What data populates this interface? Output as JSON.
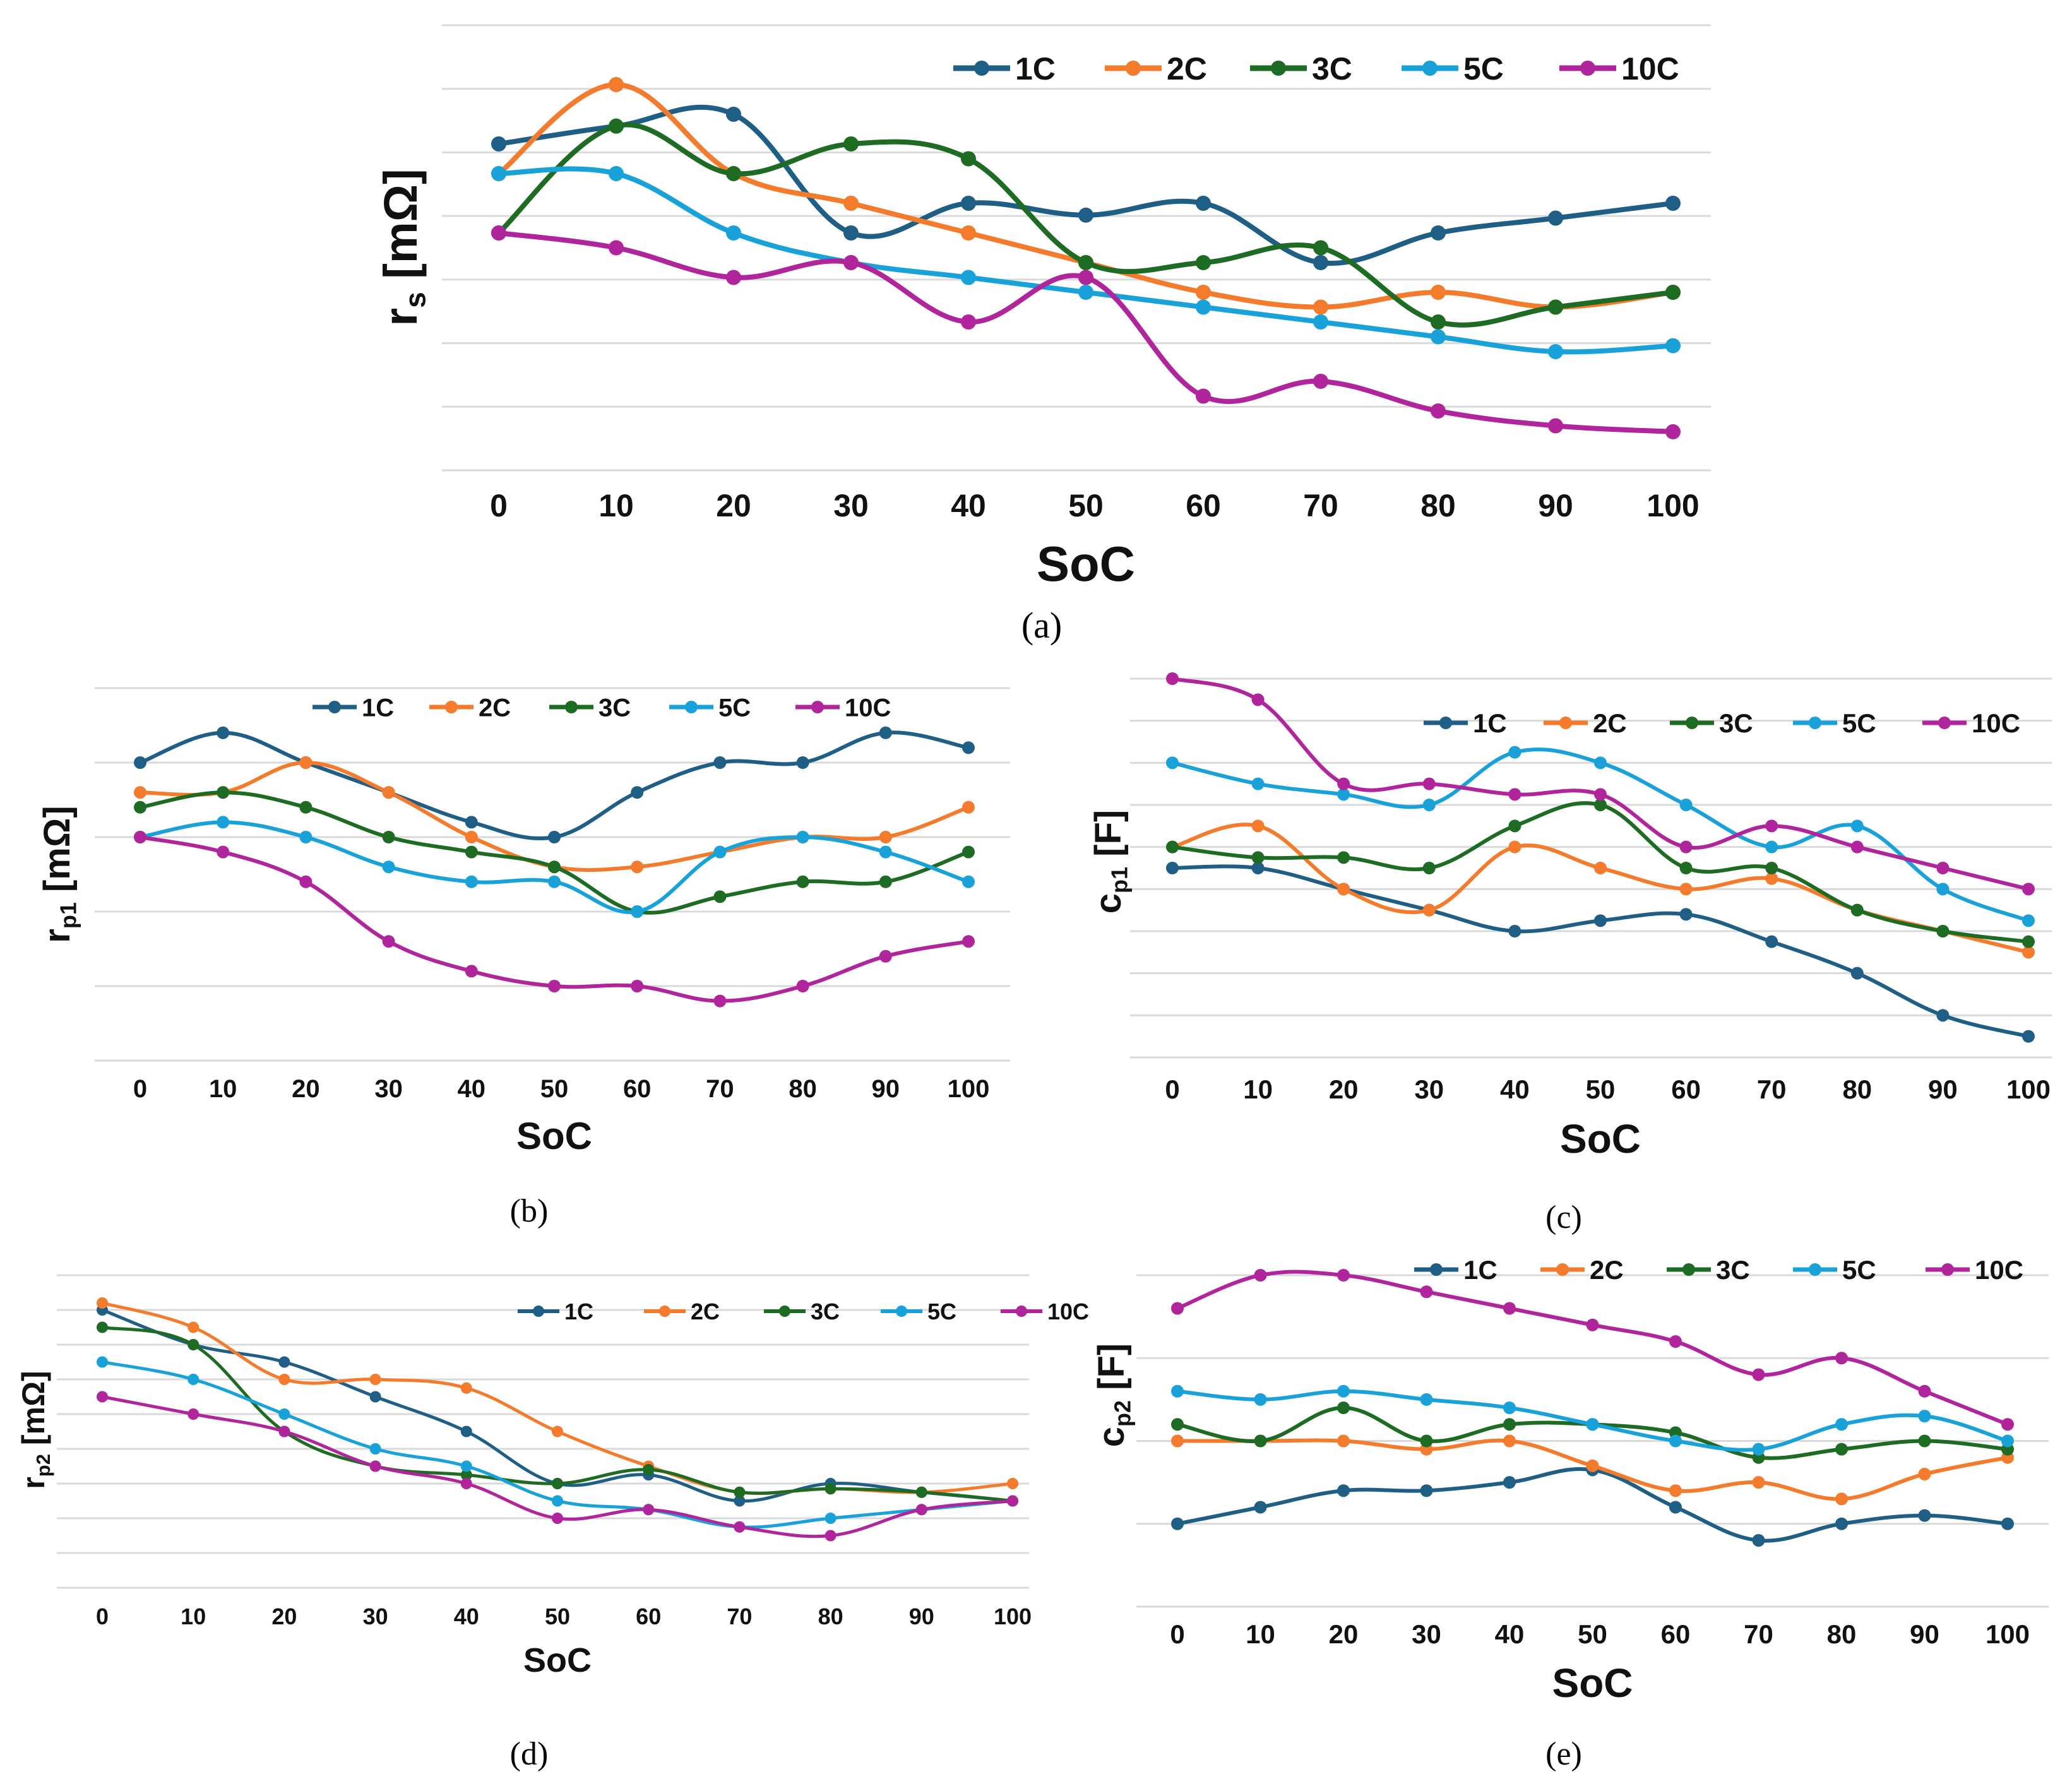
{
  "figure": {
    "captions": [
      "(a)",
      "(b)",
      "(c)",
      "(d)",
      "(e)"
    ]
  },
  "colors": {
    "1C": "#1f5f85",
    "2C": "#f47a2c",
    "3C": "#1e6b23",
    "5C": "#18a2d9",
    "10C": "#b0249c"
  },
  "chart_data": [
    {
      "id": "a",
      "type": "line",
      "smooth": true,
      "ylabel_main": "r",
      "ylabel_sub": "s",
      "ylabel_unit": " [mΩ]",
      "xlabel": "SoC",
      "categories": [
        "0",
        "10",
        "20",
        "30",
        "40",
        "50",
        "60",
        "70",
        "80",
        "90",
        "100"
      ],
      "ylim": [
        0,
        7.5
      ],
      "grid_lines": 7,
      "legend_position": "top-right",
      "series": [
        {
          "name": "1C",
          "values": [
            5.5,
            5.8,
            6.0,
            4.0,
            4.5,
            4.3,
            4.5,
            3.5,
            4.0,
            4.25,
            4.5
          ]
        },
        {
          "name": "2C",
          "values": [
            5.0,
            6.5,
            5.0,
            4.5,
            4.0,
            3.5,
            3.0,
            2.75,
            3.0,
            2.75,
            3.0
          ]
        },
        {
          "name": "3C",
          "values": [
            4.0,
            5.8,
            5.0,
            5.5,
            5.25,
            3.5,
            3.5,
            3.75,
            2.5,
            2.75,
            3.0
          ]
        },
        {
          "name": "5C",
          "values": [
            5.0,
            5.0,
            4.0,
            3.5,
            3.25,
            3.0,
            2.75,
            2.5,
            2.25,
            2.0,
            2.1
          ]
        },
        {
          "name": "10C",
          "values": [
            4.0,
            3.75,
            3.25,
            3.5,
            2.5,
            3.25,
            1.25,
            1.5,
            1.0,
            0.75,
            0.65
          ]
        }
      ]
    },
    {
      "id": "b",
      "type": "line",
      "smooth": true,
      "ylabel_main": "r",
      "ylabel_sub": "p1",
      "ylabel_unit": " [mΩ]",
      "xlabel": "SoC",
      "categories": [
        "0",
        "10",
        "20",
        "30",
        "40",
        "50",
        "60",
        "70",
        "80",
        "90",
        "100"
      ],
      "ylim": [
        0,
        5
      ],
      "grid_lines": 5,
      "legend_position": "top",
      "series": [
        {
          "name": "1C",
          "values": [
            4.0,
            4.4,
            4.0,
            3.6,
            3.2,
            3.0,
            3.6,
            4.0,
            4.0,
            4.4,
            4.2
          ]
        },
        {
          "name": "2C",
          "values": [
            3.6,
            3.6,
            4.0,
            3.6,
            3.0,
            2.6,
            2.6,
            2.8,
            3.0,
            3.0,
            3.4
          ]
        },
        {
          "name": "3C",
          "values": [
            3.4,
            3.6,
            3.4,
            3.0,
            2.8,
            2.6,
            2.0,
            2.2,
            2.4,
            2.4,
            2.8
          ]
        },
        {
          "name": "5C",
          "values": [
            3.0,
            3.2,
            3.0,
            2.6,
            2.4,
            2.4,
            2.0,
            2.8,
            3.0,
            2.8,
            2.4
          ]
        },
        {
          "name": "10C",
          "values": [
            3.0,
            2.8,
            2.4,
            1.6,
            1.2,
            1.0,
            1.0,
            0.8,
            1.0,
            1.4,
            1.6
          ]
        }
      ]
    },
    {
      "id": "c",
      "type": "line",
      "smooth": true,
      "ylabel_main": "c",
      "ylabel_sub": "p1",
      "ylabel_unit": " [F]",
      "xlabel": "SoC",
      "categories": [
        "0",
        "10",
        "20",
        "30",
        "40",
        "50",
        "60",
        "70",
        "80",
        "90",
        "100"
      ],
      "ylim": [
        0,
        9
      ],
      "grid_lines": 9,
      "legend_position": "top-right",
      "series": [
        {
          "name": "1C",
          "values": [
            4.5,
            4.5,
            4.0,
            3.5,
            3.0,
            3.25,
            3.4,
            2.75,
            2.0,
            1.0,
            0.5
          ]
        },
        {
          "name": "2C",
          "values": [
            5.0,
            5.5,
            4.0,
            3.5,
            5.0,
            4.5,
            4.0,
            4.25,
            3.5,
            3.0,
            2.5
          ]
        },
        {
          "name": "3C",
          "values": [
            5.0,
            4.75,
            4.75,
            4.5,
            5.5,
            6.0,
            4.5,
            4.5,
            3.5,
            3.0,
            2.75
          ]
        },
        {
          "name": "5C",
          "values": [
            7.0,
            6.5,
            6.25,
            6.0,
            7.25,
            7.0,
            6.0,
            5.0,
            5.5,
            4.0,
            3.25
          ]
        },
        {
          "name": "10C",
          "values": [
            9.0,
            8.5,
            6.5,
            6.5,
            6.25,
            6.25,
            5.0,
            5.5,
            5.0,
            4.5,
            4.0
          ]
        }
      ]
    },
    {
      "id": "d",
      "type": "line",
      "smooth": true,
      "ylabel_main": "r",
      "ylabel_sub": "p2",
      "ylabel_unit": " [mΩ]",
      "xlabel": "SoC",
      "categories": [
        "0",
        "10",
        "20",
        "30",
        "40",
        "50",
        "60",
        "70",
        "80",
        "90",
        "100"
      ],
      "ylim": [
        0,
        9
      ],
      "grid_lines": 9,
      "legend_position": "top-right",
      "series": [
        {
          "name": "1C",
          "values": [
            8.0,
            7.0,
            6.5,
            5.5,
            4.5,
            3.0,
            3.25,
            2.5,
            3.0,
            2.75,
            2.5
          ]
        },
        {
          "name": "2C",
          "values": [
            8.2,
            7.5,
            6.0,
            6.0,
            5.75,
            4.5,
            3.5,
            2.75,
            2.85,
            2.75,
            3.0
          ]
        },
        {
          "name": "3C",
          "values": [
            7.5,
            7.0,
            4.5,
            3.5,
            3.25,
            3.0,
            3.4,
            2.75,
            2.85,
            2.75,
            2.5
          ]
        },
        {
          "name": "5C",
          "values": [
            6.5,
            6.0,
            5.0,
            4.0,
            3.5,
            2.5,
            2.25,
            1.75,
            2.0,
            2.25,
            2.5
          ]
        },
        {
          "name": "10C",
          "values": [
            5.5,
            5.0,
            4.5,
            3.5,
            3.0,
            2.0,
            2.25,
            1.75,
            1.5,
            2.25,
            2.5
          ]
        }
      ]
    },
    {
      "id": "e",
      "type": "line",
      "smooth": true,
      "ylabel_main": "c",
      "ylabel_sub": "p2",
      "ylabel_unit": " [F]",
      "xlabel": "SoC",
      "categories": [
        "0",
        "10",
        "20",
        "30",
        "40",
        "50",
        "60",
        "70",
        "80",
        "90",
        "100"
      ],
      "ylim": [
        0,
        4
      ],
      "grid_lines": 4,
      "legend_position": "top",
      "series": [
        {
          "name": "1C",
          "values": [
            1.0,
            1.2,
            1.4,
            1.4,
            1.5,
            1.65,
            1.2,
            0.8,
            1.0,
            1.1,
            1.0
          ]
        },
        {
          "name": "2C",
          "values": [
            2.0,
            2.0,
            2.0,
            1.9,
            2.0,
            1.7,
            1.4,
            1.5,
            1.3,
            1.6,
            1.8
          ]
        },
        {
          "name": "3C",
          "values": [
            2.2,
            2.0,
            2.4,
            2.0,
            2.2,
            2.2,
            2.1,
            1.8,
            1.9,
            2.0,
            1.9
          ]
        },
        {
          "name": "5C",
          "values": [
            2.6,
            2.5,
            2.6,
            2.5,
            2.4,
            2.2,
            2.0,
            1.9,
            2.2,
            2.3,
            2.0
          ]
        },
        {
          "name": "10C",
          "values": [
            3.6,
            4.0,
            4.0,
            3.8,
            3.6,
            3.4,
            3.2,
            2.8,
            3.0,
            2.6,
            2.2
          ]
        }
      ]
    }
  ]
}
